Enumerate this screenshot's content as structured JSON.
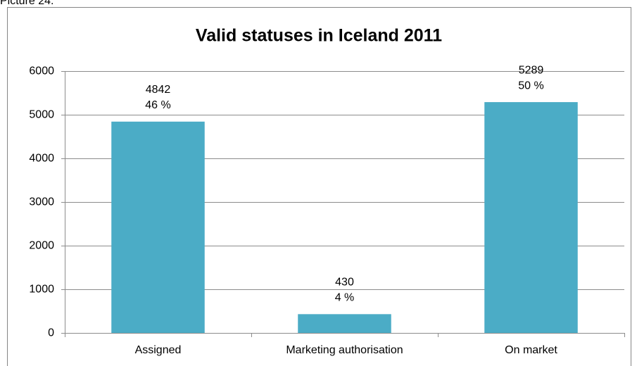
{
  "caption": "Picture 24.",
  "chart_data": {
    "type": "bar",
    "title": "Valid statuses in Iceland 2011",
    "categories": [
      "Assigned",
      "Marketing authorisation",
      "On market"
    ],
    "values": [
      4842,
      430,
      5289
    ],
    "shares": [
      {
        "value": 46,
        "label": "46 %"
      },
      {
        "value": 4,
        "label": "4 %"
      },
      {
        "value": 50,
        "label": "50 %"
      }
    ],
    "color": "#4bacc6",
    "ylim": [
      0,
      6000
    ],
    "yticks": [
      0,
      1000,
      2000,
      3000,
      4000,
      5000,
      6000
    ],
    "grid": true
  }
}
